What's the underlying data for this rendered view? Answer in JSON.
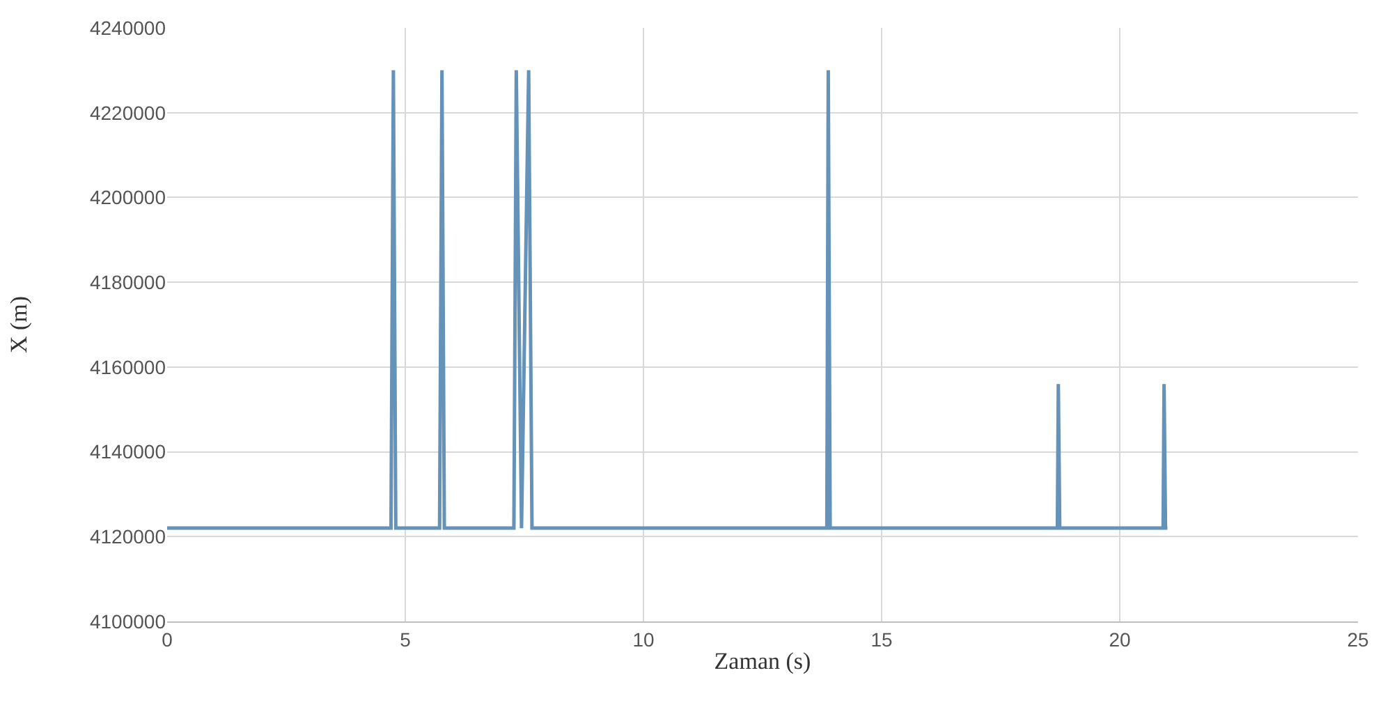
{
  "chart_data": {
    "type": "line",
    "xlabel": "Zaman (s)",
    "ylabel": "X (m)",
    "series": [
      {
        "color": "#6492b8",
        "x": [
          0,
          4.7,
          4.75,
          4.8,
          5.72,
          5.77,
          5.82,
          7.28,
          7.33,
          7.44,
          7.59,
          7.66,
          13.85,
          13.88,
          13.92,
          18.69,
          18.71,
          18.74,
          20.91,
          20.93,
          20.96,
          21.0
        ],
        "values": [
          4122000,
          4122000,
          4230000,
          4122000,
          4122000,
          4230000,
          4122000,
          4122000,
          4230000,
          4122000,
          4230000,
          4122000,
          4122000,
          4230000,
          4122000,
          4122000,
          4156000,
          4122000,
          4122000,
          4156000,
          4122000,
          4122000
        ]
      }
    ],
    "xlim": [
      0,
      25
    ],
    "xticks": [
      0,
      5,
      10,
      15,
      20,
      25
    ],
    "ylim": [
      4100000,
      4240000
    ],
    "yticks": [
      4100000,
      4120000,
      4140000,
      4160000,
      4180000,
      4200000,
      4220000,
      4240000
    ],
    "grid": true,
    "line_style": "solid"
  }
}
